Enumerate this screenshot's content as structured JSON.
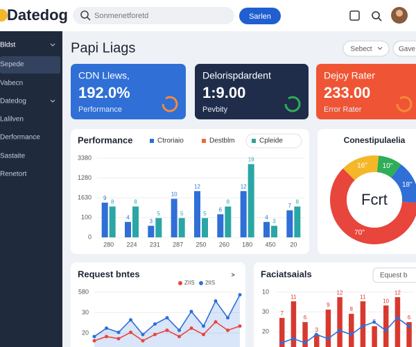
{
  "header": {
    "logo": "Datedog",
    "search_placeholder": "Sonmenetforetd",
    "search_button": "Sarlen"
  },
  "sidebar": {
    "items": [
      "Bldst",
      "Sepede",
      "Vabecn",
      "Datedog",
      "Lalilven",
      "Derformance",
      "Sastaite",
      "Renetort"
    ]
  },
  "page": {
    "title": "Papi Liags",
    "buttons": [
      "Sebect",
      "Gave"
    ]
  },
  "cards": [
    {
      "label": "CDN Llews,",
      "value": "192.0%",
      "caption": "Performance",
      "color": "#2f6fd6"
    },
    {
      "label": "Delorispdardent",
      "value": "1:9.00",
      "caption": "Pevbity",
      "color": "#1f2d4a"
    },
    {
      "label": "Dejoy Rater",
      "value": "233.00",
      "caption": "Error Rater",
      "color": "#ef5535"
    }
  ],
  "performance": {
    "title": "Performance",
    "legend": [
      {
        "name": "Ctroriaio",
        "color": "#2f6fd6"
      },
      {
        "name": "Destblm",
        "color": "#ef6a3a"
      },
      {
        "name": "Cpleide",
        "color": "#2aa58f"
      }
    ],
    "y_axis_labels": [
      "3380",
      "1280",
      "1630",
      "100",
      "0"
    ],
    "categories": [
      "280",
      "224",
      "231",
      "287",
      "250",
      "260",
      "180",
      "450",
      "20"
    ],
    "series": [
      {
        "color": "#2f6fd6",
        "values": [
          9,
          4,
          3,
          10,
          12,
          6,
          12,
          4,
          7
        ]
      },
      {
        "color": "#2aa6a6",
        "values": [
          8,
          8,
          5,
          5,
          5,
          8,
          19,
          3,
          8
        ]
      }
    ]
  },
  "donut": {
    "title": "Conestipulaelia",
    "center": "Fcrt",
    "segments": [
      {
        "label": "16\"",
        "value": 16,
        "color": "#f4b728"
      },
      {
        "label": "10\"",
        "value": 10,
        "color": "#2fae57"
      },
      {
        "label": "18\"",
        "value": 18,
        "color": "#2f6fd6"
      },
      {
        "label": "70\"",
        "value": 70,
        "color": "#e8453c"
      }
    ]
  },
  "requests": {
    "title": "Request bntes",
    "legend": [
      {
        "name": "ZIIS",
        "color": "#e8453c"
      },
      {
        "name": "2IIS",
        "color": "#2f6fd6"
      }
    ],
    "y_axis_labels": [
      "580",
      "30",
      "20"
    ],
    "series": [
      {
        "color": "#2f6fd6",
        "values": [
          5,
          9,
          7,
          13,
          6,
          11,
          14,
          8,
          17,
          10,
          22,
          14,
          25
        ]
      },
      {
        "color": "#e8453c",
        "values": [
          3,
          5,
          4,
          7,
          3,
          6,
          8,
          5,
          9,
          6,
          12,
          8,
          10
        ]
      }
    ]
  },
  "facts": {
    "title": "Faciatsaials",
    "button": "Equest b",
    "y_axis_labels": [
      "10",
      "30",
      "20"
    ],
    "bars": {
      "color": "#d8392f",
      "values": [
        7,
        11,
        6,
        3,
        9,
        12,
        8,
        11,
        5,
        10,
        12,
        6
      ]
    },
    "line": {
      "color": "#2f6fd6",
      "values": [
        1,
        2,
        1,
        3,
        2,
        4,
        3,
        5,
        6,
        4,
        7,
        5
      ]
    }
  }
}
